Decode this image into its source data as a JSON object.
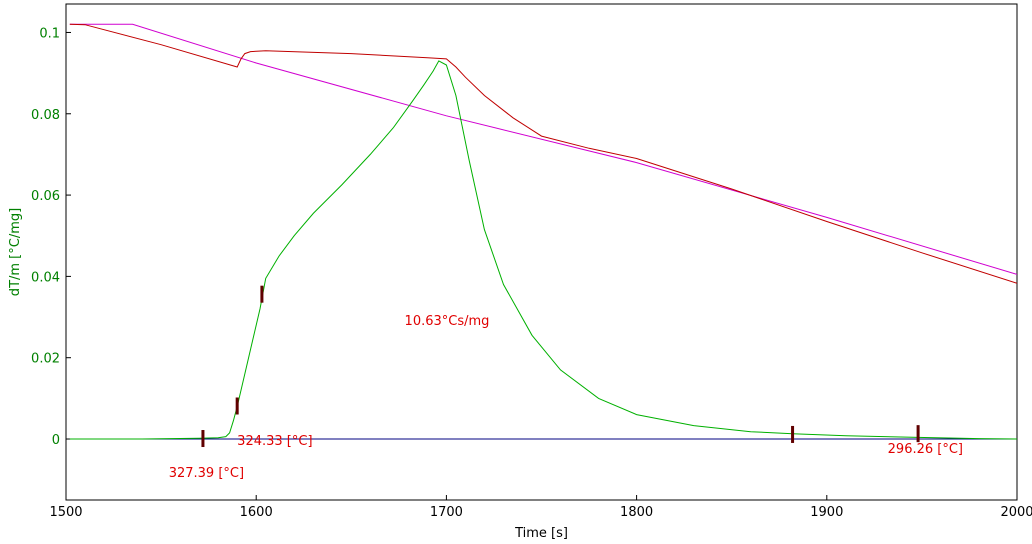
{
  "chart_data": {
    "type": "line",
    "xlabel": "Time [s]",
    "ylabel": "dT/m  [°C/mg]",
    "xlim": [
      1500,
      2000
    ],
    "ylim": [
      -0.015,
      0.107
    ],
    "x_ticks": [
      1500,
      1600,
      1700,
      1800,
      1900,
      2000
    ],
    "y_ticks": [
      0,
      0.02,
      0.04,
      0.06,
      0.08,
      0.1
    ],
    "y_tick_labels": [
      "0",
      "0.02",
      "0.04",
      "0.06",
      "0.08",
      "0.1"
    ],
    "grid": false,
    "colors": {
      "axis_labels": "#008000",
      "dtm": "#00b000",
      "baseline": "#000080",
      "temperature": "#c00000",
      "reference": "#d000d0",
      "annotation": "#e00000",
      "marker": "#600000"
    },
    "series": [
      {
        "key": "dtm",
        "x": [
          1502,
          1540,
          1570,
          1580,
          1584,
          1586,
          1588,
          1590,
          1594,
          1598,
          1602,
          1605,
          1612,
          1620,
          1630,
          1645,
          1660,
          1672,
          1682,
          1688,
          1693,
          1696,
          1700,
          1705,
          1712,
          1720,
          1730,
          1745,
          1760,
          1780,
          1800,
          1830,
          1860,
          1882,
          1910,
          1948,
          1980,
          2000
        ],
        "y": [
          0,
          0,
          0.0002,
          0.0003,
          0.0006,
          0.0015,
          0.0045,
          0.008,
          0.016,
          0.024,
          0.032,
          0.0395,
          0.045,
          0.05,
          0.0555,
          0.0625,
          0.07,
          0.0765,
          0.083,
          0.087,
          0.0905,
          0.093,
          0.092,
          0.0845,
          0.0685,
          0.0515,
          0.038,
          0.0255,
          0.017,
          0.01,
          0.006,
          0.0033,
          0.0018,
          0.0013,
          0.0008,
          0.0004,
          0.0001,
          0
        ]
      },
      {
        "key": "baseline",
        "x": [
          1502,
          2000
        ],
        "y": [
          0,
          0
        ]
      },
      {
        "key": "temperature",
        "x": [
          1502,
          1510,
          1550,
          1590,
          1592,
          1594,
          1597,
          1605,
          1650,
          1690,
          1700,
          1705,
          1710,
          1720,
          1735,
          1750,
          1775,
          1800,
          1850,
          1900,
          1950,
          2000
        ],
        "y": [
          0.102,
          0.1019,
          0.097,
          0.0915,
          0.0935,
          0.0948,
          0.0953,
          0.0955,
          0.0948,
          0.0938,
          0.0935,
          0.0915,
          0.089,
          0.0845,
          0.079,
          0.0745,
          0.0715,
          0.069,
          0.0615,
          0.0535,
          0.0458,
          0.0383
        ]
      },
      {
        "key": "reference",
        "x": [
          1502,
          1535,
          1600,
          1700,
          1800,
          1900,
          2000
        ],
        "y": [
          0.102,
          0.102,
          0.0925,
          0.0795,
          0.068,
          0.0545,
          0.0405
        ]
      }
    ],
    "markers": [
      {
        "x": 1572,
        "y": 0
      },
      {
        "x": 1590,
        "y": 0.008
      },
      {
        "x": 1603,
        "y": 0.0355
      },
      {
        "x": 1882,
        "y": 0.001
      },
      {
        "x": 1948,
        "y": 0.0012
      }
    ],
    "annotations": [
      {
        "text": "10.63°Cs/mg",
        "x": 1678,
        "y": 0.028
      },
      {
        "text": "324.33 [°C]",
        "x": 1590,
        "y": -0.0015
      },
      {
        "text": "327.39 [°C]",
        "x": 1554,
        "y": -0.0093
      },
      {
        "text": "296.26 [°C]",
        "x": 1932,
        "y": -0.0035
      }
    ]
  }
}
